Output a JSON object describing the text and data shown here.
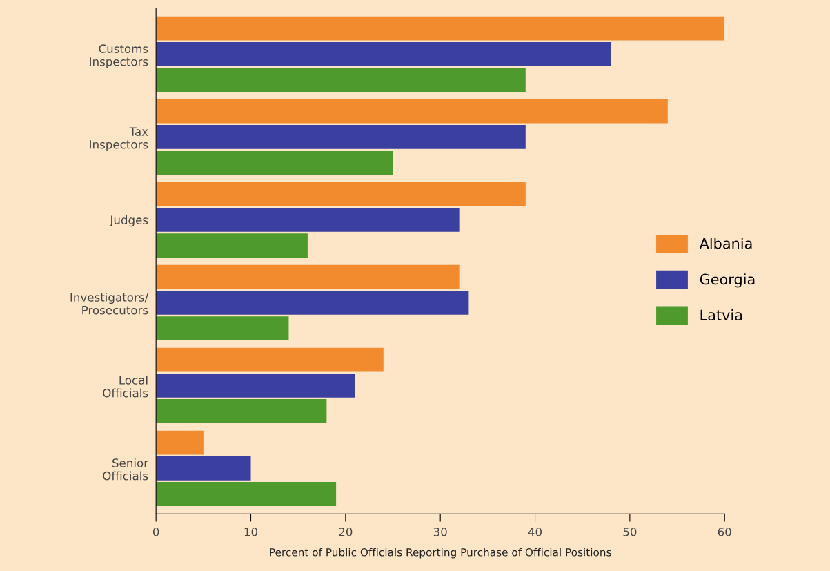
{
  "chart_data": {
    "type": "bar",
    "orientation": "horizontal",
    "xlabel": "Percent of Public Officials Reporting Purchase of Official Positions",
    "categories": [
      "Customs\nInspectors",
      "Tax\nInspectors",
      "Judges",
      "Investigators/\nProsecutors",
      "Local\nOfficials",
      "Senior\nOfficials"
    ],
    "series": [
      {
        "name": "Albania",
        "color": "#f28a2e",
        "values": [
          60,
          54,
          39,
          32,
          24,
          5
        ]
      },
      {
        "name": "Georgia",
        "color": "#3b3fa0",
        "values": [
          48,
          39,
          32,
          33,
          21,
          10
        ]
      },
      {
        "name": "Latvia",
        "color": "#4e9a2c",
        "values": [
          39,
          25,
          16,
          14,
          18,
          19
        ]
      }
    ],
    "xlim": [
      0,
      60
    ],
    "xticks": [
      0,
      10,
      20,
      30,
      40,
      50,
      60
    ],
    "grid": false,
    "legend": "right"
  }
}
